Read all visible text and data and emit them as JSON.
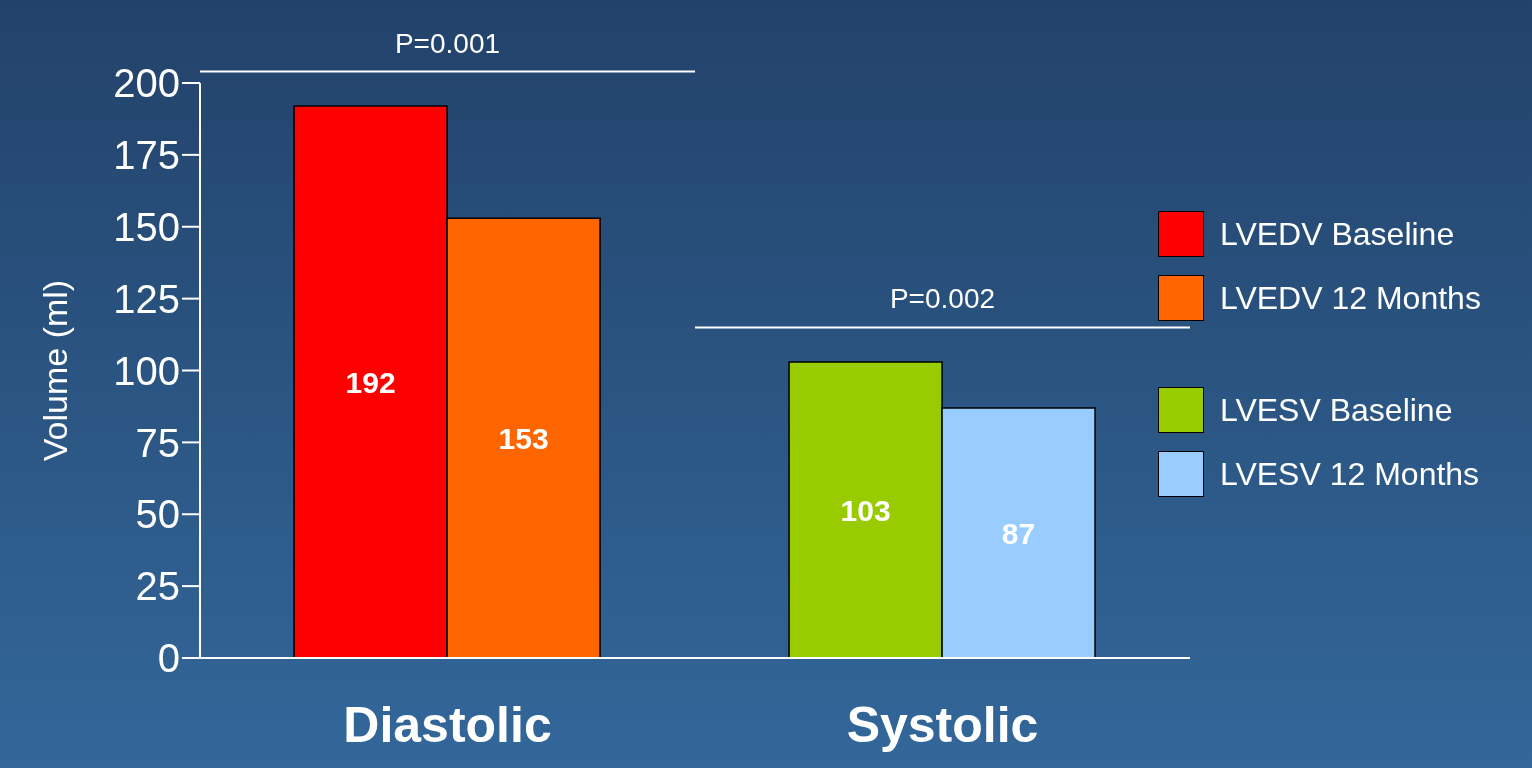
{
  "chart_data": {
    "type": "bar",
    "ylabel": "Volume (ml)",
    "categories": [
      "Diastolic",
      "Systolic"
    ],
    "series": [
      {
        "name": "LVEDV Baseline",
        "color": "#ff0000",
        "values": [
          192,
          null
        ]
      },
      {
        "name": "LVEDV 12 Months",
        "color": "#ff6600",
        "values": [
          153,
          null
        ]
      },
      {
        "name": "LVESV Baseline",
        "color": "#99cc00",
        "values": [
          null,
          103
        ]
      },
      {
        "name": "LVESV 12 Months",
        "color": "#99ccff",
        "values": [
          null,
          87
        ]
      }
    ],
    "ylim": [
      0,
      200
    ],
    "yticks": [
      0,
      25,
      50,
      75,
      100,
      125,
      150,
      175,
      200
    ],
    "grid": false,
    "legend": "right",
    "data_labels": true,
    "annotations": [
      "P=0.001",
      "P=0.002"
    ]
  }
}
